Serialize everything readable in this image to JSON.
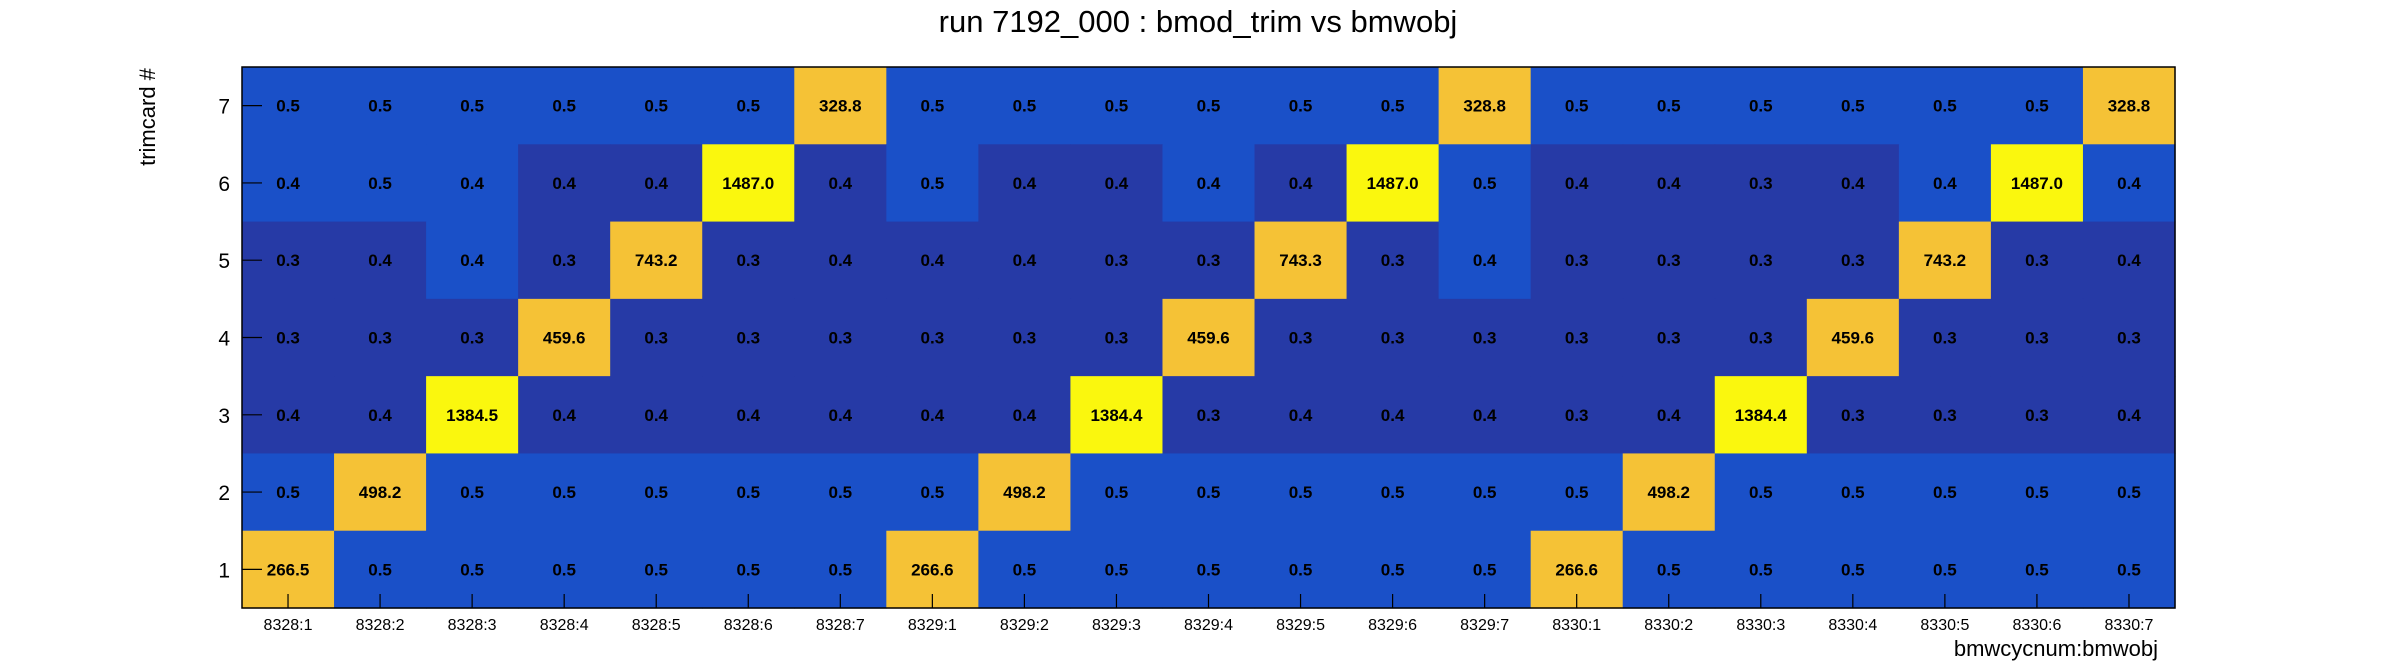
{
  "chart_data": {
    "type": "heatmap",
    "title": "run 7192_000 : bmod_trim vs bmwobj",
    "xlabel": "bmwcycnum:bmwobj",
    "ylabel": "trimcard #",
    "x_categories": [
      "8328:1",
      "8328:2",
      "8328:3",
      "8328:4",
      "8328:5",
      "8328:6",
      "8328:7",
      "8329:1",
      "8329:2",
      "8329:3",
      "8329:4",
      "8329:5",
      "8329:6",
      "8329:7",
      "8330:1",
      "8330:2",
      "8330:3",
      "8330:4",
      "8330:5",
      "8330:6",
      "8330:7"
    ],
    "y_categories": [
      "7",
      "6",
      "5",
      "4",
      "3",
      "2",
      "1"
    ],
    "values": [
      [
        0.5,
        0.5,
        0.5,
        0.5,
        0.5,
        0.5,
        328.8,
        0.5,
        0.5,
        0.5,
        0.5,
        0.5,
        0.5,
        328.8,
        0.5,
        0.5,
        0.5,
        0.5,
        0.5,
        0.5,
        328.8
      ],
      [
        0.4,
        0.5,
        0.4,
        0.4,
        0.4,
        1487.0,
        0.4,
        0.5,
        0.4,
        0.4,
        0.4,
        0.4,
        1487.0,
        0.5,
        0.4,
        0.4,
        0.3,
        0.4,
        0.4,
        1487.0,
        0.4
      ],
      [
        0.3,
        0.4,
        0.4,
        0.3,
        743.2,
        0.3,
        0.4,
        0.4,
        0.4,
        0.3,
        0.3,
        743.3,
        0.3,
        0.4,
        0.3,
        0.3,
        0.3,
        0.3,
        743.2,
        0.3,
        0.4
      ],
      [
        0.3,
        0.3,
        0.3,
        459.6,
        0.3,
        0.3,
        0.3,
        0.3,
        0.3,
        0.3,
        459.6,
        0.3,
        0.3,
        0.3,
        0.3,
        0.3,
        0.3,
        459.6,
        0.3,
        0.3,
        0.3
      ],
      [
        0.4,
        0.4,
        1384.5,
        0.4,
        0.4,
        0.4,
        0.4,
        0.4,
        0.4,
        1384.4,
        0.3,
        0.4,
        0.4,
        0.4,
        0.3,
        0.4,
        1384.4,
        0.3,
        0.3,
        0.3,
        0.4
      ],
      [
        0.5,
        498.2,
        0.5,
        0.5,
        0.5,
        0.5,
        0.5,
        0.5,
        498.2,
        0.5,
        0.5,
        0.5,
        0.5,
        0.5,
        0.5,
        498.2,
        0.5,
        0.5,
        0.5,
        0.5,
        0.5
      ],
      [
        266.5,
        0.5,
        0.5,
        0.5,
        0.5,
        0.5,
        0.5,
        266.6,
        0.5,
        0.5,
        0.5,
        0.5,
        0.5,
        0.5,
        266.6,
        0.5,
        0.5,
        0.5,
        0.5,
        0.5,
        0.5
      ]
    ],
    "value_labels": [
      [
        "0.5",
        "0.5",
        "0.5",
        "0.5",
        "0.5",
        "0.5",
        "328.8",
        "0.5",
        "0.5",
        "0.5",
        "0.5",
        "0.5",
        "0.5",
        "328.8",
        "0.5",
        "0.5",
        "0.5",
        "0.5",
        "0.5",
        "0.5",
        "328.8"
      ],
      [
        "0.4",
        "0.5",
        "0.4",
        "0.4",
        "0.4",
        "1487.0",
        "0.4",
        "0.5",
        "0.4",
        "0.4",
        "0.4",
        "0.4",
        "1487.0",
        "0.5",
        "0.4",
        "0.4",
        "0.3",
        "0.4",
        "0.4",
        "1487.0",
        "0.4"
      ],
      [
        "0.3",
        "0.4",
        "0.4",
        "0.3",
        "743.2",
        "0.3",
        "0.4",
        "0.4",
        "0.4",
        "0.3",
        "0.3",
        "743.3",
        "0.3",
        "0.4",
        "0.3",
        "0.3",
        "0.3",
        "0.3",
        "743.2",
        "0.3",
        "0.4"
      ],
      [
        "0.3",
        "0.3",
        "0.3",
        "459.6",
        "0.3",
        "0.3",
        "0.3",
        "0.3",
        "0.3",
        "0.3",
        "459.6",
        "0.3",
        "0.3",
        "0.3",
        "0.3",
        "0.3",
        "0.3",
        "459.6",
        "0.3",
        "0.3",
        "0.3"
      ],
      [
        "0.4",
        "0.4",
        "1384.5",
        "0.4",
        "0.4",
        "0.4",
        "0.4",
        "0.4",
        "0.4",
        "1384.4",
        "0.3",
        "0.4",
        "0.4",
        "0.4",
        "0.3",
        "0.4",
        "1384.4",
        "0.3",
        "0.3",
        "0.3",
        "0.4"
      ],
      [
        "0.5",
        "498.2",
        "0.5",
        "0.5",
        "0.5",
        "0.5",
        "0.5",
        "0.5",
        "498.2",
        "0.5",
        "0.5",
        "0.5",
        "0.5",
        "0.5",
        "0.5",
        "498.2",
        "0.5",
        "0.5",
        "0.5",
        "0.5",
        "0.5"
      ],
      [
        "266.5",
        "0.5",
        "0.5",
        "0.5",
        "0.5",
        "0.5",
        "0.5",
        "266.6",
        "0.5",
        "0.5",
        "0.5",
        "0.5",
        "0.5",
        "0.5",
        "266.6",
        "0.5",
        "0.5",
        "0.5",
        "0.5",
        "0.5",
        "0.5"
      ]
    ],
    "colors": {
      "low_dark": "#263aa6",
      "low_mid": "#1a50c8",
      "high_mid": "#f5c236",
      "high_peak": "#faf70e"
    },
    "grid": false,
    "legend": "none"
  }
}
